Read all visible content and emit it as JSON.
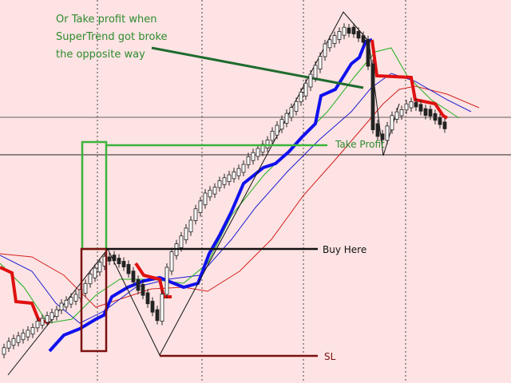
{
  "annotations": {
    "note": [
      "Or Take profit when",
      "SuperTrend got broke",
      "the opposite way"
    ],
    "take_profit": "Take Profit",
    "buy": "Buy Here",
    "stop_loss": "SL"
  }
}
